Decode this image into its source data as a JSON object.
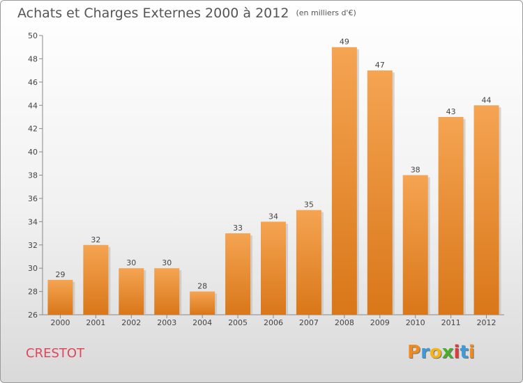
{
  "header": {
    "title": "Achats et Charges Externes 2000 à 2012",
    "unit": "(en milliers d'€)"
  },
  "footer": {
    "commune": "CRESTOT",
    "logo": [
      "P",
      "r",
      "o",
      "x",
      "i",
      "t",
      "i"
    ]
  },
  "colors": {
    "bar_top": "#f5a452",
    "bar_bottom": "#d97719",
    "title": "#555555",
    "commune": "#e0455a",
    "logo": [
      "#f08a1c",
      "#3f9bd8",
      "#f2b418",
      "#4caa2c",
      "#e03a3a",
      "#3f9bd8",
      "#f08a1c"
    ]
  },
  "chart_data": {
    "type": "bar",
    "title": "Achats et Charges Externes 2000 à 2012",
    "subtitle": "(en milliers d'€)",
    "xlabel": "",
    "ylabel": "",
    "categories": [
      "2000",
      "2001",
      "2002",
      "2003",
      "2004",
      "2005",
      "2006",
      "2007",
      "2008",
      "2009",
      "2010",
      "2011",
      "2012"
    ],
    "values": [
      29,
      32,
      30,
      30,
      28,
      33,
      34,
      35,
      49,
      47,
      38,
      43,
      44
    ],
    "ylim": [
      26,
      50
    ],
    "yticks": [
      26,
      28,
      30,
      32,
      34,
      36,
      38,
      40,
      42,
      44,
      46,
      48,
      50
    ],
    "grid": false,
    "legend": "none"
  }
}
